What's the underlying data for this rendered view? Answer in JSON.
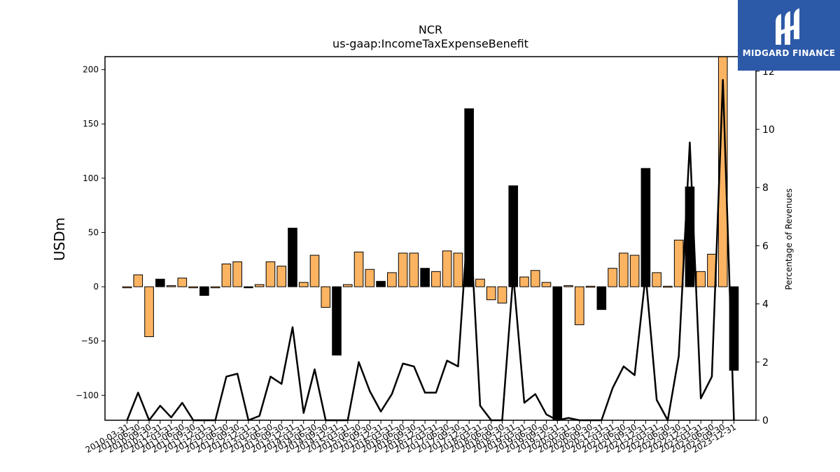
{
  "chart_data": {
    "type": "bar",
    "title": "NCR",
    "subtitle": "us-gaap:IncomeTaxExpenseBenefit",
    "ylabel": "USDm",
    "y2label": "Percentage of Revenues",
    "ylim": [
      -123,
      212
    ],
    "y2lim": [
      0,
      12.5
    ],
    "yticks": [
      -100,
      -50,
      0,
      50,
      100,
      150,
      200
    ],
    "y2ticks": [
      0,
      2,
      4,
      6,
      8,
      10,
      12
    ],
    "grid": false,
    "legend": "none",
    "colors": {
      "quarterly_bar": "#fdb462",
      "annual_bar": "#000000",
      "line": "#000000",
      "bar_edge": "#000000"
    },
    "categories": [
      "2010-03-31",
      "2010-06-30",
      "2010-09-30",
      "2010-12-31",
      "2011-03-31",
      "2011-06-30",
      "2011-09-30",
      "2011-12-31",
      "2012-03-31",
      "2012-06-30",
      "2012-09-30",
      "2012-12-31",
      "2013-03-31",
      "2013-06-30",
      "2013-09-30",
      "2013-12-31",
      "2014-03-31",
      "2014-06-30",
      "2014-09-30",
      "2014-12-31",
      "2015-03-31",
      "2015-06-30",
      "2015-09-30",
      "2015-12-31",
      "2016-03-31",
      "2016-06-30",
      "2016-09-30",
      "2016-12-31",
      "2017-03-31",
      "2017-06-30",
      "2017-09-30",
      "2017-12-31",
      "2018-03-31",
      "2018-06-30",
      "2018-09-30",
      "2018-12-31",
      "2019-03-31",
      "2019-06-30",
      "2019-09-30",
      "2019-12-31",
      "2020-03-31",
      "2020-06-30",
      "2020-09-30",
      "2020-12-31",
      "2021-03-31",
      "2021-06-30",
      "2021-09-30",
      "2021-12-31",
      "2022-03-31",
      "2022-06-30",
      "2022-09-30",
      "2022-12-31",
      "2023-03-31",
      "2023-06-30",
      "2023-09-30",
      "2023-12-31"
    ],
    "tick_labels": [
      "2010-03-31",
      "2010-06-30",
      "2010-09-30",
      "2010-12-31",
      "2011-03-31",
      "2011-06-30",
      "2011-09-30",
      "2011-12-31",
      "2012-03-31",
      "2012-06-30",
      "2012-09-30",
      "2012-12-31",
      "2013-03-31",
      "2013-06-30",
      "2013-09-30",
      "2013-12-31",
      "2014-03-31",
      "2014-06-30",
      "2014-09-30",
      "2014-12-31",
      "2015-03-31",
      "2015-06-30",
      "2015-09-30",
      "2015-12-31",
      "2016-03-31",
      "2016-06-30",
      "2016-09-30",
      "2016-12-31",
      "2017-03-31",
      "2017-06-30",
      "2017-09-30",
      "2017-12-31",
      "2018-03-31",
      "2018-06-30",
      "2018-09-30",
      "2018-12-31",
      "2019-03-31",
      "2019-06-30",
      "2019-09-30",
      "2019-12-31",
      "2020-03-31",
      "2020-06-30",
      "2020-09-30",
      "2020-12-31",
      "2021-03-31",
      "2021-06-30",
      "2021-09-30",
      "2021-12-31",
      "2022-03-31",
      "2022-06-30",
      "2022-09-30",
      "2022-12-31",
      "2023-03-31",
      "2023-06-30",
      "2023-09-30",
      "2023-12-31"
    ],
    "series": [
      {
        "values": [
          -1,
          11,
          -46,
          7,
          1,
          8,
          -1,
          -8,
          -1,
          21,
          23,
          -1,
          2,
          23,
          19,
          54,
          4,
          29,
          -19,
          -63,
          2,
          32,
          16,
          5,
          13,
          31,
          31,
          17,
          14,
          33,
          31,
          164,
          7,
          -12,
          -15,
          93,
          9,
          15,
          4,
          -123,
          1,
          -35,
          0,
          -21,
          17,
          31,
          29,
          109,
          13,
          0,
          43,
          92,
          14,
          30,
          212,
          -77
        ],
        "bar_type": [
          "Q",
          "Q",
          "Q",
          "FY",
          "Q",
          "Q",
          "Q",
          "FY",
          "Q",
          "Q",
          "Q",
          "FY",
          "Q",
          "Q",
          "Q",
          "FY",
          "Q",
          "Q",
          "Q",
          "FY",
          "Q",
          "Q",
          "Q",
          "FY",
          "Q",
          "Q",
          "Q",
          "FY",
          "Q",
          "Q",
          "Q",
          "FY",
          "Q",
          "Q",
          "Q",
          "FY",
          "Q",
          "Q",
          "Q",
          "FY",
          "Q",
          "Q",
          "Q",
          "FY",
          "Q",
          "Q",
          "Q",
          "FY",
          "Q",
          "Q",
          "Q",
          "FY",
          "Q",
          "Q",
          "Q",
          "FY"
        ]
      },
      {
        "axis": "right",
        "values": [
          0,
          0.95,
          0,
          0.5,
          0.1,
          0.6,
          0,
          0,
          0,
          1.5,
          1.6,
          0,
          0.15,
          1.5,
          1.25,
          3.2,
          0.25,
          1.75,
          0,
          0,
          0,
          2.0,
          1.0,
          0.3,
          0.9,
          1.95,
          1.85,
          0.95,
          0.95,
          2.05,
          1.85,
          7.4,
          0.5,
          0,
          0,
          5.0,
          0.6,
          0.9,
          0.2,
          0,
          0.08,
          0,
          0,
          0,
          1.1,
          1.85,
          1.55,
          5.0,
          0.7,
          0,
          2.2,
          9.55,
          0.75,
          1.5,
          11.7,
          0
        ]
      }
    ]
  },
  "logo": {
    "text": "MIDGARD FINANCE"
  }
}
